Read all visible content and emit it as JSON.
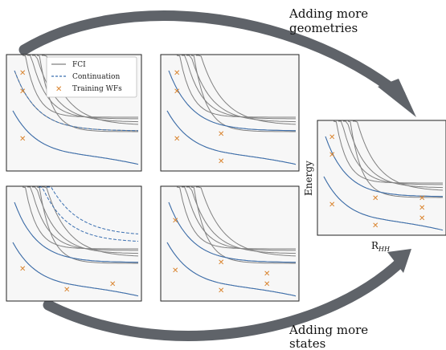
{
  "captions": {
    "top": [
      "Adding more",
      "geometries"
    ],
    "bottom": [
      "Adding more",
      "states"
    ]
  },
  "legend": {
    "fci": "FCI",
    "continuation": "Continuation",
    "training": "Training WFs"
  },
  "axes": {
    "y_label": "Energy",
    "x_label": "R",
    "x_label_sub": "HH"
  },
  "colors": {
    "fci": "#808080",
    "continuation": "#3a6fb0",
    "training": "#d9822b",
    "panel_bg": "#f7f7f7",
    "arrow": "#5f6369"
  }
}
